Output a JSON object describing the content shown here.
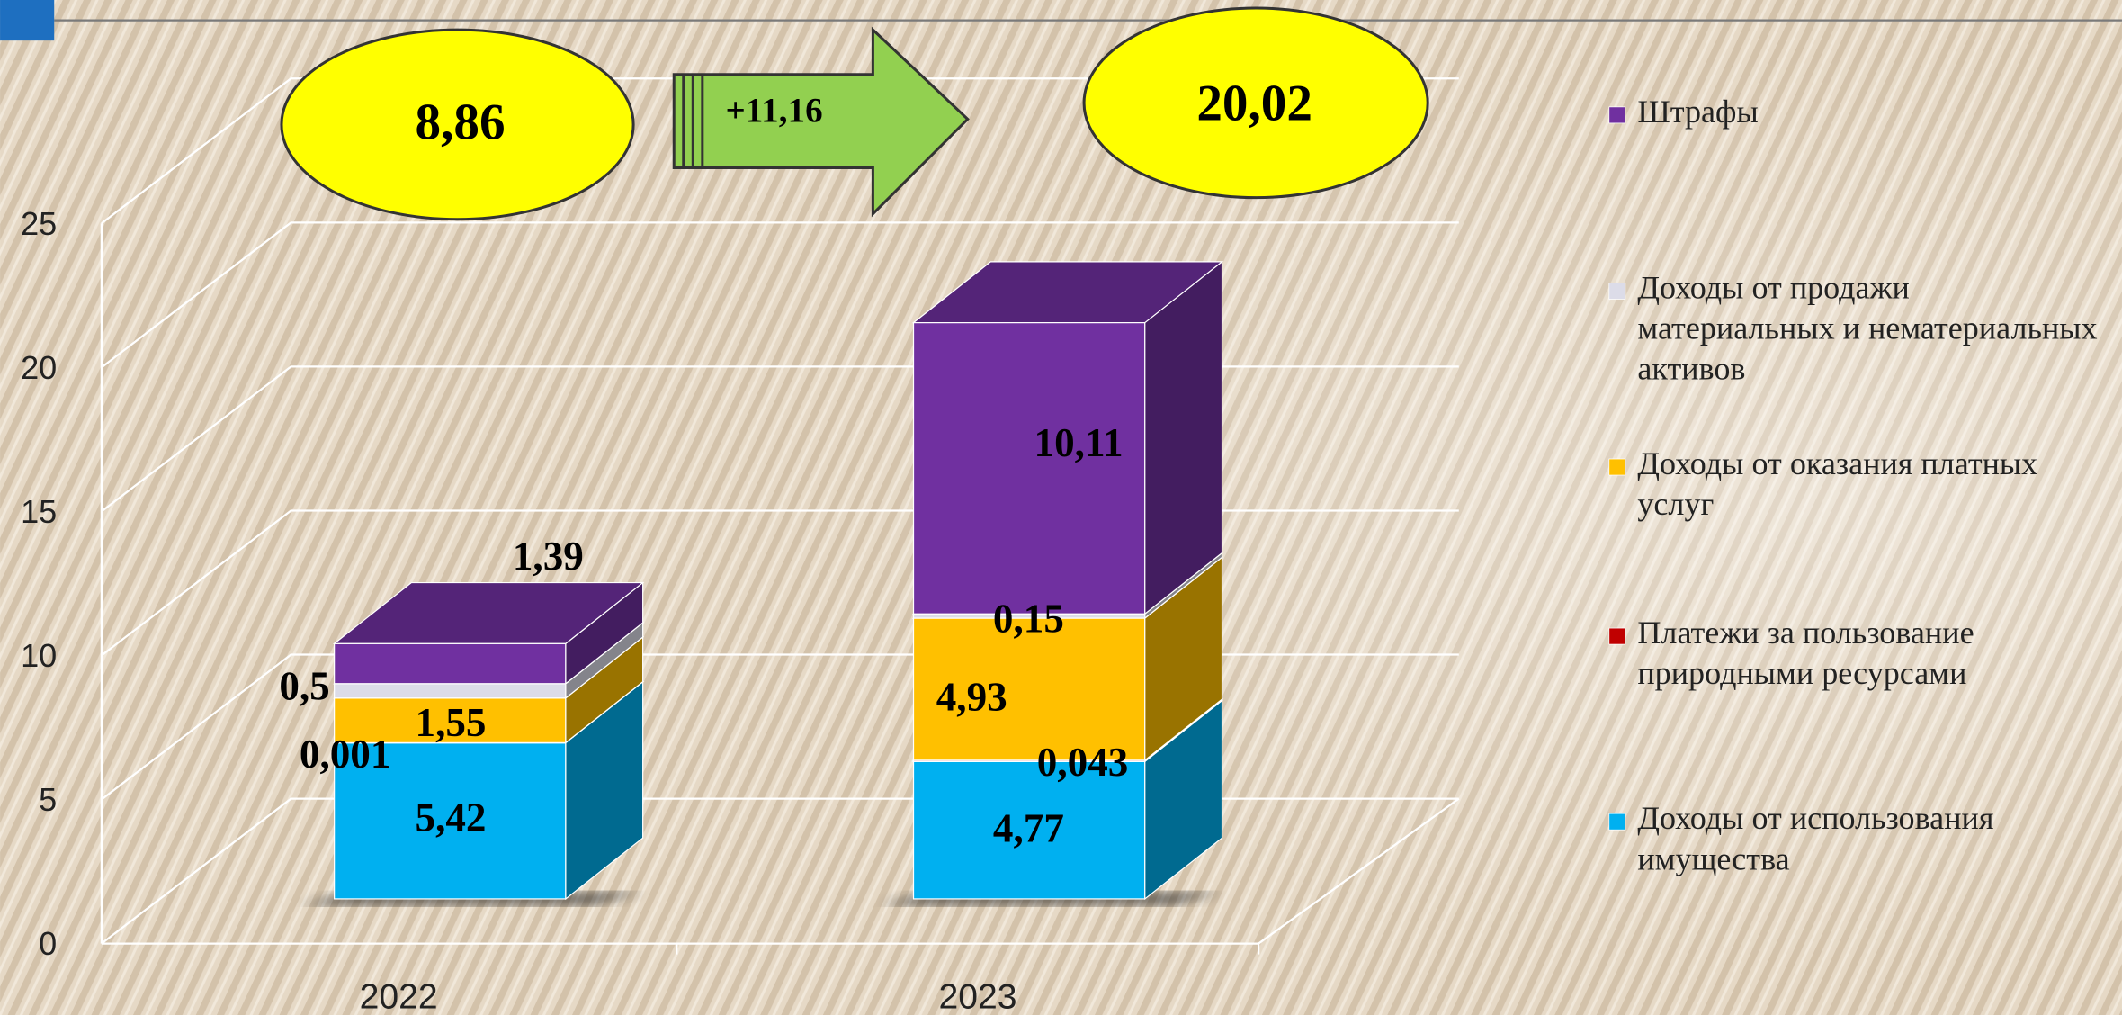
{
  "chart_data": {
    "type": "bar3d_stacked",
    "categories": [
      "2022",
      "2023"
    ],
    "series": [
      {
        "name": "Доходы от использования имущества",
        "color": "#00b0f0",
        "values": [
          5.42,
          4.77
        ],
        "value_labels": [
          "5,42",
          "4,77"
        ]
      },
      {
        "name": "Платежи за пользование природными ресурсами",
        "color": "#c00000",
        "values": [
          0.001,
          0.043
        ],
        "value_labels": [
          "0,001",
          "0,043"
        ]
      },
      {
        "name": "Доходы от оказания платных услуг",
        "color": "#ffc000",
        "values": [
          1.55,
          4.93
        ],
        "value_labels": [
          "1,55",
          "4,93"
        ]
      },
      {
        "name": "Доходы от продажи материальных и нематериальных активов",
        "color": "#dcdce8",
        "values": [
          0.5,
          0.15
        ],
        "value_labels": [
          "0,5",
          "0,15"
        ]
      },
      {
        "name": "Штрафы",
        "color": "#7030a0",
        "values": [
          1.39,
          10.11
        ],
        "value_labels": [
          "1,39",
          "10,11"
        ]
      }
    ],
    "annotations": [
      "8,86",
      "+11,16",
      "20,02"
    ],
    "ylim": [
      0,
      25
    ],
    "yticks": [
      0,
      5,
      10,
      15,
      20,
      25
    ],
    "grid": true,
    "legend": "right"
  }
}
